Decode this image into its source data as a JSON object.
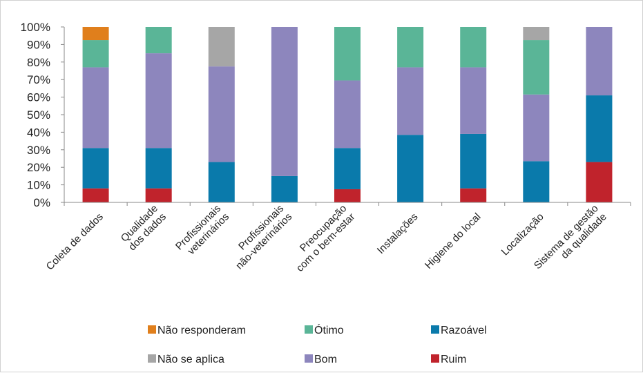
{
  "chart_data": {
    "type": "bar",
    "stacked": true,
    "percent": true,
    "ylim": [
      0,
      100
    ],
    "yticks": [
      "0%",
      "10%",
      "20%",
      "30%",
      "40%",
      "50%",
      "60%",
      "70%",
      "80%",
      "90%",
      "100%"
    ],
    "categories": [
      [
        "Coleta de dados"
      ],
      [
        "Qualidade",
        "dos dados"
      ],
      [
        "Profissionais",
        "veterinários"
      ],
      [
        "Profissionais",
        "não-veterinários"
      ],
      [
        "Preocupação",
        "com o bem-estar"
      ],
      [
        "Instalações"
      ],
      [
        "Higiene do local"
      ],
      [
        "Localização"
      ],
      [
        "Sistema de gestão",
        "da qualidade"
      ]
    ],
    "series": [
      {
        "name": "Ruim",
        "color": "#c0232c",
        "values": [
          8,
          8,
          0,
          0,
          7.5,
          0,
          8,
          0,
          23
        ]
      },
      {
        "name": "Razoável",
        "color": "#0a7aab",
        "values": [
          23,
          23,
          23,
          15,
          23.5,
          38.5,
          31,
          23.5,
          38
        ]
      },
      {
        "name": "Bom",
        "color": "#8d86bd",
        "values": [
          46,
          54,
          54.5,
          85,
          38.5,
          38.5,
          38,
          38,
          39
        ]
      },
      {
        "name": "Ótimo",
        "color": "#5ab597",
        "values": [
          15.5,
          15,
          0,
          0,
          30.5,
          23,
          23,
          31,
          0
        ]
      },
      {
        "name": "Não se aplica",
        "color": "#a6a6a6",
        "values": [
          0,
          0,
          22.5,
          0,
          0,
          0,
          0,
          7.5,
          0
        ]
      },
      {
        "name": "Não responderam",
        "color": "#e07f1c",
        "values": [
          7.5,
          0,
          0,
          0,
          0,
          0,
          0,
          0,
          0
        ]
      }
    ],
    "legend": [
      [
        "Não responderam",
        "Ótimo",
        "Razoável"
      ],
      [
        "Não se aplica",
        "Bom",
        "Ruim"
      ]
    ],
    "legend_position": "bottom",
    "grid": false
  }
}
